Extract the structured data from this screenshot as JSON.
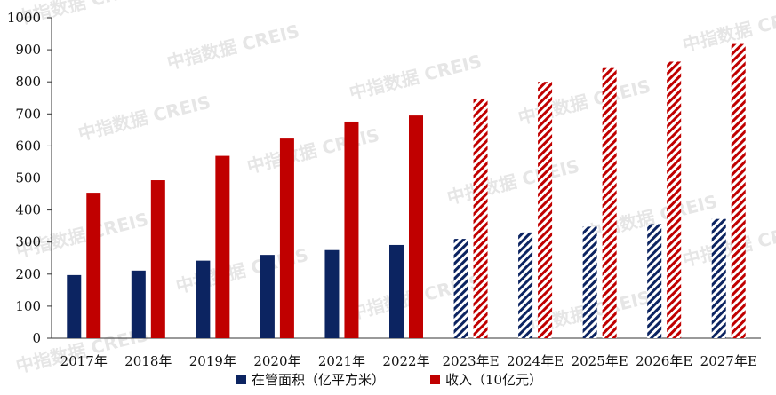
{
  "watermark": "中指数据 CREIS",
  "legend": {
    "items": [
      {
        "label": "在管面积（亿平方米）",
        "color": "#0c2461"
      },
      {
        "label": "收入（10亿元）",
        "color": "#c00000"
      }
    ]
  },
  "chart_data": {
    "type": "bar",
    "categories": [
      "2017年",
      "2018年",
      "2019年",
      "2020年",
      "2021年",
      "2022年",
      "2023年E",
      "2024年E",
      "2025年E",
      "2026年E",
      "2027年E"
    ],
    "estimated_from_index": 6,
    "series": [
      {
        "name": "在管面积（亿平方米）",
        "color": "#0c2461",
        "values": [
          197,
          211,
          242,
          260,
          275,
          291,
          310,
          330,
          348,
          356,
          372
        ]
      },
      {
        "name": "收入（10亿元）",
        "color": "#c00000",
        "values": [
          454,
          493,
          569,
          623,
          676,
          695,
          748,
          800,
          843,
          863,
          918
        ]
      }
    ],
    "ylim": [
      0,
      1000
    ],
    "yticks": [
      0,
      100,
      200,
      300,
      400,
      500,
      600,
      700,
      800,
      900,
      1000
    ],
    "title": "",
    "xlabel": "",
    "ylabel": "",
    "grid": false,
    "legend_position": "bottom-center"
  }
}
